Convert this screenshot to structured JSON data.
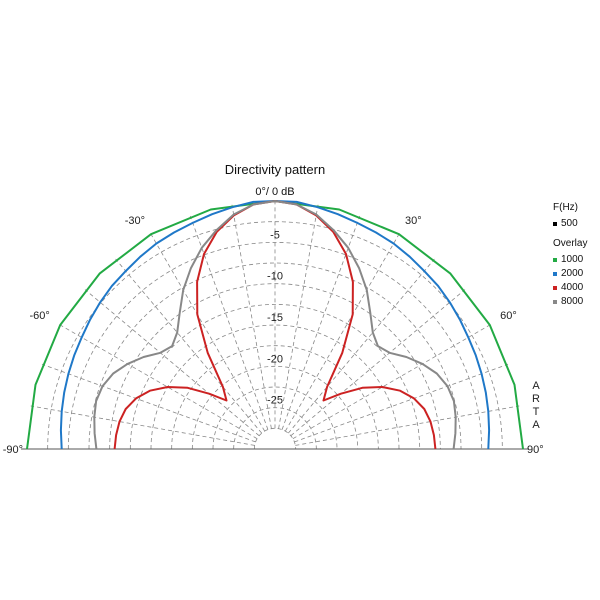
{
  "chart_data": {
    "type": "polar",
    "title": "Directivity pattern",
    "top_label": "0°/ 0 dB",
    "radial_unit": "dB",
    "radial_range": [
      -30,
      0
    ],
    "radial_ticks": [
      "-5",
      "-10",
      "-15",
      "-20",
      "-25"
    ],
    "angle_range": [
      -90,
      90
    ],
    "angle_labels": [
      {
        "angle": -90,
        "text": "-90°"
      },
      {
        "angle": -60,
        "text": "-60°"
      },
      {
        "angle": -30,
        "text": "-30°"
      },
      {
        "angle": 30,
        "text": "30°"
      },
      {
        "angle": 60,
        "text": "60°"
      },
      {
        "angle": 90,
        "text": "90°"
      }
    ],
    "legend": {
      "header": "F(Hz)",
      "overlay_label": "Overlay",
      "entries": [
        {
          "name": "500",
          "color": "#000000"
        },
        {
          "name": "1000",
          "color": "#22aa44"
        },
        {
          "name": "2000",
          "color": "#1f78c8"
        },
        {
          "name": "4000",
          "color": "#cc2222"
        },
        {
          "name": "8000",
          "color": "#888888"
        }
      ]
    },
    "series": [
      {
        "name": "1000",
        "color": "#22aa44",
        "angles": [
          0,
          15,
          30,
          45,
          60,
          75,
          90
        ],
        "values": [
          0,
          0,
          0,
          0,
          0,
          0,
          0
        ]
      },
      {
        "name": "2000",
        "color": "#1f78c8",
        "angles": [
          0,
          5,
          10,
          15,
          20,
          25,
          30,
          35,
          40,
          45,
          50,
          55,
          60,
          65,
          70,
          75,
          80,
          85,
          90
        ],
        "values": [
          0,
          0,
          -0.3,
          -0.6,
          -0.9,
          -1.1,
          -1.3,
          -1.6,
          -1.9,
          -2.1,
          -2.4,
          -2.7,
          -3.0,
          -3.2,
          -3.4,
          -3.6,
          -3.8,
          -4.0,
          -4.2
        ]
      },
      {
        "name": "4000",
        "color": "#cc2222",
        "angles": [
          0,
          5,
          10,
          15,
          20,
          25,
          30,
          35,
          40,
          45,
          50,
          55,
          60,
          65,
          70,
          75,
          80,
          85,
          90
        ],
        "values": [
          0,
          -0.3,
          -1.3,
          -2.8,
          -4.9,
          -7.7,
          -11.2,
          -15.8,
          -20.2,
          -21.7,
          -19.6,
          -17.1,
          -15.0,
          -13.3,
          -12.1,
          -11.3,
          -10.9,
          -10.7,
          -10.6
        ]
      },
      {
        "name": "8000",
        "color": "#888888",
        "angles": [
          0,
          5,
          10,
          15,
          20,
          25,
          30,
          35,
          40,
          45,
          50,
          55,
          60,
          65,
          70,
          75,
          80,
          85,
          90
        ],
        "values": [
          0,
          -0.3,
          -1.2,
          -2.6,
          -4.1,
          -5.9,
          -7.8,
          -9.9,
          -11.6,
          -12.4,
          -11.9,
          -10.6,
          -9.4,
          -8.4,
          -7.8,
          -7.6,
          -7.8,
          -8.1,
          -8.4
        ]
      }
    ]
  }
}
